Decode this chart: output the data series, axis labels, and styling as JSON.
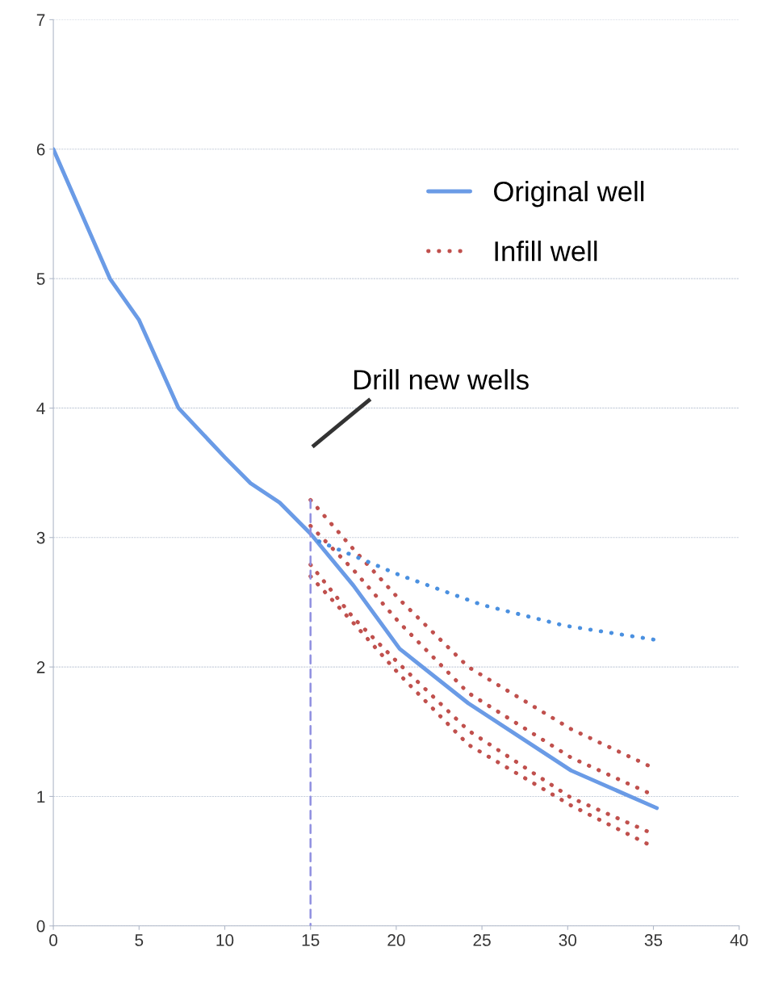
{
  "chart_data": {
    "type": "line",
    "annotations": [
      "Drill new wells"
    ],
    "xlim": [
      0,
      40
    ],
    "xticks": [
      0,
      5,
      10,
      15,
      20,
      25,
      30,
      35,
      40
    ],
    "ylim": [
      0,
      7
    ],
    "yticks": [
      0,
      1,
      2,
      3,
      4,
      5,
      6,
      7
    ],
    "grid": "y",
    "legend": "top right",
    "marker": "none",
    "series": [
      {
        "name": "Original well",
        "color": "#6a9be6",
        "line_style": "solid",
        "x": [
          0,
          3.3,
          5,
          7.3,
          10,
          11.5,
          13.2,
          15,
          17.5,
          20.2,
          24.2,
          30.2,
          35.2
        ],
        "values": [
          6,
          5,
          4.68,
          4,
          3.62,
          3.42,
          3.27,
          3.03,
          2.63,
          2.14,
          1.72,
          1.2,
          0.91
        ]
      },
      {
        "name": "Infill well",
        "color": "#c0504d",
        "line_style": "dotted",
        "x": [
          15,
          17.5,
          20.2,
          24.2,
          30.2,
          35
        ],
        "values": [
          3.29,
          2.91,
          2.52,
          2.0,
          1.52,
          1.22
        ]
      },
      {
        "color": "#c0504d",
        "line_style": "dotted",
        "x": [
          15,
          17.5,
          20.2,
          24.2,
          30.2,
          35
        ],
        "values": [
          3.09,
          2.75,
          2.34,
          1.8,
          1.3,
          1.01
        ]
      },
      {
        "color": "#c0504d",
        "line_style": "dotted",
        "x": [
          15,
          17.5,
          20.2,
          24.2,
          30.2,
          35
        ],
        "values": [
          2.79,
          2.38,
          2.02,
          1.51,
          0.99,
          0.71
        ]
      },
      {
        "color": "#c0504d",
        "line_style": "dotted",
        "x": [
          15,
          17.5,
          20.2,
          24.2,
          30.2,
          35
        ],
        "values": [
          2.7,
          2.34,
          1.94,
          1.4,
          0.93,
          0.61
        ]
      },
      {
        "color": "#4a90e0",
        "line_style": "dotted",
        "x": [
          15.5,
          17.5,
          20.2,
          25,
          29.8,
          35.1
        ],
        "values": [
          2.97,
          2.86,
          2.71,
          2.48,
          2.32,
          2.21
        ]
      },
      {
        "color": "#9090e0",
        "line_style": "dashed",
        "x": [
          15,
          15
        ],
        "values": [
          3.29,
          0
        ]
      }
    ]
  }
}
